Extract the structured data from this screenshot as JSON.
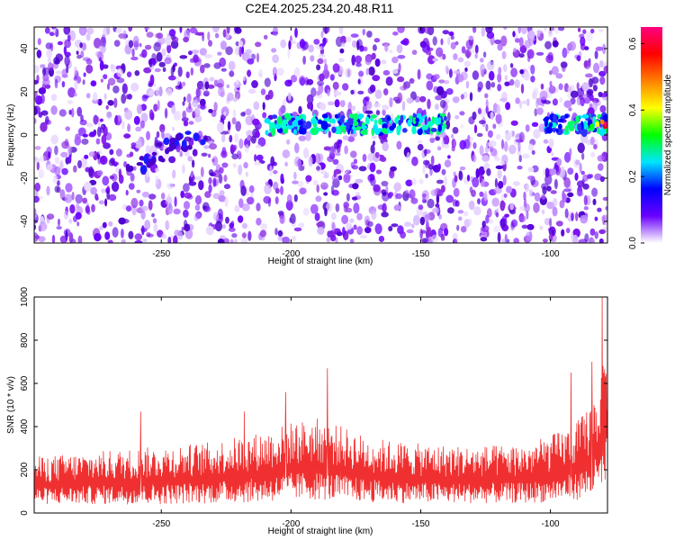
{
  "title": "C2E4.2025.234.20.48.R11",
  "colors": {
    "snr_line": "#f03030",
    "background": "#ffffff",
    "axis": "#000000"
  },
  "chart_data": [
    {
      "type": "heatmap",
      "name": "spectrogram",
      "xlabel": "Height of straight line (km)",
      "ylabel": "Frequency (Hz)",
      "xlim": [
        -299,
        -78
      ],
      "ylim": [
        -50,
        50
      ],
      "xticks": [
        -250,
        -200,
        -150,
        -100
      ],
      "xtick_labels": [
        "-250",
        "-200",
        "-150",
        "-100"
      ],
      "yticks": [
        -40,
        -20,
        0,
        20,
        40
      ],
      "ytick_labels": [
        "-40",
        "-20",
        "0",
        "20",
        "40"
      ],
      "strong_band": {
        "frequency_hz": 5,
        "segments_km": [
          [
            -210,
            -140
          ],
          [
            -102,
            -78
          ]
        ]
      },
      "weak_feature": {
        "from_km": [
          -262,
          -15
        ],
        "to_km": [
          -235,
          0
        ]
      },
      "colorbar": {
        "label": "Normalized spectral amplitude",
        "range": [
          0,
          0.65
        ],
        "ticks": [
          0.0,
          0.2,
          0.4,
          0.6
        ],
        "tick_labels": [
          "0.0",
          "0.2",
          "0.4",
          "0.6"
        ],
        "stops": [
          "#ffffff",
          "#6a00ff",
          "#0000ff",
          "#00e5ff",
          "#00ff00",
          "#ffff00",
          "#ff8000",
          "#ff0000",
          "#ff0080"
        ]
      }
    },
    {
      "type": "line",
      "name": "snr",
      "xlabel": "Height of straight line (km)",
      "ylabel": "SNR (10 * v/v)",
      "xlim": [
        -299,
        -78
      ],
      "ylim": [
        0,
        1000
      ],
      "xticks": [
        -250,
        -200,
        -150,
        -100
      ],
      "xtick_labels": [
        "-250",
        "-200",
        "-150",
        "-100"
      ],
      "yticks": [
        0,
        200,
        400,
        600,
        800,
        1000
      ],
      "ytick_labels": [
        "0",
        "200",
        "400",
        "600",
        "800",
        "1000"
      ],
      "envelope_x": [
        -299,
        -270,
        -250,
        -230,
        -210,
        -200,
        -190,
        -180,
        -170,
        -150,
        -130,
        -110,
        -100,
        -90,
        -85,
        -80,
        -78
      ],
      "envelope_low": [
        40,
        40,
        40,
        45,
        50,
        60,
        60,
        55,
        50,
        45,
        45,
        45,
        50,
        60,
        70,
        90,
        100
      ],
      "envelope_high": [
        260,
        290,
        310,
        330,
        380,
        420,
        440,
        400,
        350,
        320,
        310,
        320,
        360,
        420,
        500,
        650,
        900
      ],
      "peaks": [
        {
          "x": -186,
          "y": 670
        },
        {
          "x": -202,
          "y": 560
        },
        {
          "x": -218,
          "y": 470
        },
        {
          "x": -258,
          "y": 470
        },
        {
          "x": -80,
          "y": 1000
        },
        {
          "x": -84,
          "y": 700
        },
        {
          "x": -92,
          "y": 650
        }
      ]
    }
  ]
}
